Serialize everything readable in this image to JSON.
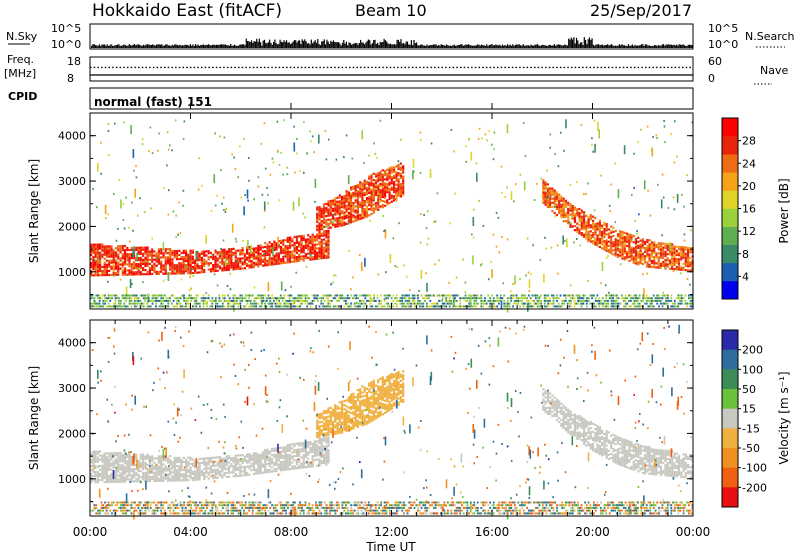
{
  "header": {
    "title": "Hokkaido East (fitACF)",
    "beam": "Beam 10",
    "date": "25/Sep/2017"
  },
  "noise_panel": {
    "left_label": "N.Sky",
    "right_label": "N.Search",
    "left_ticks": [
      "10^5",
      "10^0"
    ],
    "right_ticks": [
      "10^5",
      "10^0"
    ]
  },
  "freq_panel": {
    "left_label_line1": "Freq.",
    "left_label_line2": "[MHz]",
    "right_label": "Nave",
    "left_ticks": [
      "18",
      "8"
    ],
    "right_ticks": [
      "60",
      "0"
    ],
    "freq_mhz": 10.5,
    "nave": 34
  },
  "cpid_panel": {
    "label": "CPID",
    "text": "normal (fast) 151"
  },
  "colors": {
    "power": [
      "#0000ee",
      "#1c5fb0",
      "#3a8a66",
      "#5fae4f",
      "#9bd23c",
      "#e0d42a",
      "#f5a41a",
      "#f06c14",
      "#e8240c",
      "#ff0000"
    ],
    "velocity_pos": [
      "#2a2aa8",
      "#2e6e9c",
      "#3c8c5a",
      "#6cc13c"
    ],
    "velocity_neutral": "#c8c8c0",
    "velocity_neg": [
      "#f0b040",
      "#f09020",
      "#f06010",
      "#e81010"
    ]
  },
  "chart_data": [
    {
      "type": "heatmap",
      "name": "Power",
      "ylabel": "Slant Range [km]",
      "yticks": [
        "1000",
        "2000",
        "3000",
        "4000"
      ],
      "ylim": [
        180,
        4500
      ],
      "xlim": [
        0,
        24
      ],
      "colorbar_label": "Power [dB]",
      "colorbar_ticks": [
        "4",
        "8",
        "12",
        "16",
        "20",
        "24",
        "28"
      ],
      "colorbar_range": [
        0,
        32
      ],
      "features": [
        {
          "name": "near-range band",
          "t": [
            0,
            4,
            6,
            8,
            9.5
          ],
          "range_lo": [
            900,
            950,
            1050,
            1200,
            1300
          ],
          "range_hi": [
            1600,
            1450,
            1500,
            1750,
            1900
          ],
          "dB": 27
        },
        {
          "name": "rising arc",
          "t": [
            9,
            10,
            11,
            12.5
          ],
          "range_lo": [
            1900,
            2000,
            2200,
            2700
          ],
          "range_hi": [
            2400,
            2700,
            3100,
            3400
          ],
          "dB": 26
        },
        {
          "name": "evening arc",
          "t": [
            18,
            19,
            20,
            21,
            22,
            24
          ],
          "range_lo": [
            2500,
            2000,
            1600,
            1300,
            1100,
            1000
          ],
          "range_hi": [
            3000,
            2500,
            2200,
            1900,
            1700,
            1500
          ],
          "dB": 25
        }
      ]
    },
    {
      "type": "heatmap",
      "name": "Velocity",
      "ylabel": "Slant Range [km]",
      "yticks": [
        "1000",
        "2000",
        "3000",
        "4000"
      ],
      "ylim": [
        180,
        4500
      ],
      "xlim": [
        0,
        24
      ],
      "colorbar_label": "Velocity [m s⁻¹]",
      "colorbar_ticks": [
        "200",
        "100",
        "50",
        "15",
        "-15",
        "-50",
        "-100",
        "-200"
      ],
      "colorbar_range": [
        -250,
        250
      ],
      "features": [
        {
          "name": "ground scatter band",
          "t": [
            0,
            4,
            6,
            8,
            9.5
          ],
          "range_lo": [
            900,
            950,
            1050,
            1200,
            1300
          ],
          "range_hi": [
            1600,
            1450,
            1500,
            1750,
            1900
          ],
          "v": 0
        },
        {
          "name": "rising arc",
          "t": [
            9,
            10,
            11,
            12.5
          ],
          "range_lo": [
            1900,
            2000,
            2200,
            2700
          ],
          "range_hi": [
            2400,
            2700,
            3100,
            3400
          ],
          "v": -30
        },
        {
          "name": "evening arc",
          "t": [
            18,
            19,
            20,
            21,
            22,
            24
          ],
          "range_lo": [
            2500,
            2000,
            1600,
            1300,
            1100,
            1000
          ],
          "range_hi": [
            3000,
            2500,
            2200,
            1900,
            1700,
            1500
          ],
          "v": 0
        }
      ]
    }
  ],
  "xaxis": {
    "ticks": [
      "00:00",
      "04:00",
      "08:00",
      "12:00",
      "16:00",
      "20:00",
      "00:00"
    ],
    "tick_hours": [
      0,
      4,
      8,
      12,
      16,
      20,
      24
    ],
    "label": "Time UT"
  }
}
